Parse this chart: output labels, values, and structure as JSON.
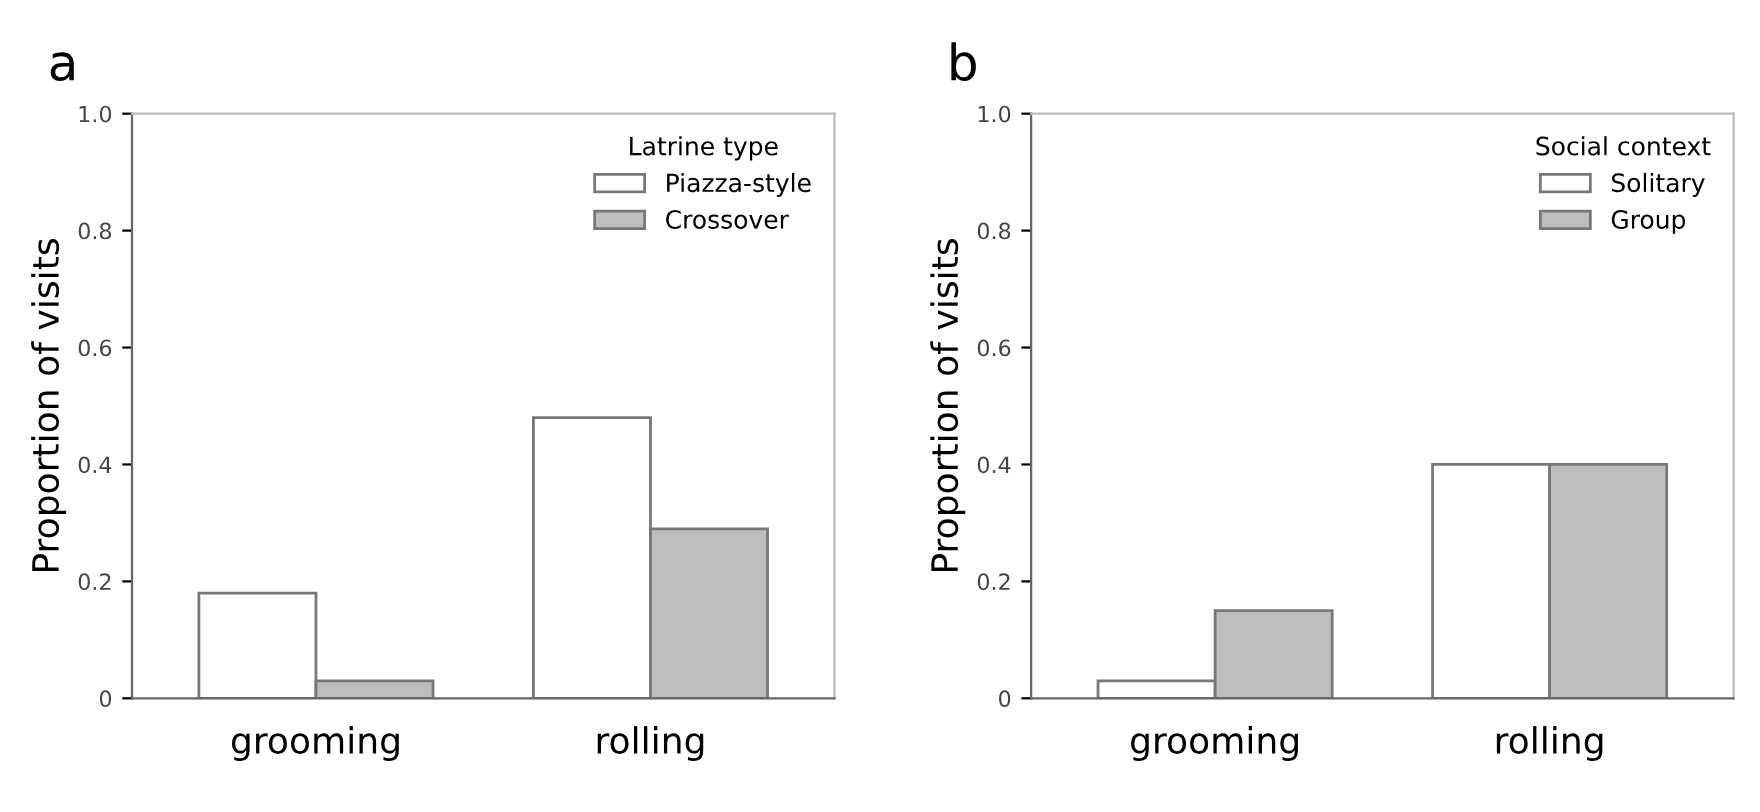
{
  "chart_data": [
    {
      "type": "bar",
      "title": "a",
      "ylabel": "Proportion of visits",
      "categories": [
        "grooming",
        "rolling"
      ],
      "legend_title": "Latrine type",
      "legend": "top right",
      "series": [
        {
          "name": "Piazza-style",
          "color": "#ffffff",
          "values": [
            0.18,
            0.48
          ]
        },
        {
          "name": "Crossover",
          "color": "#bdbdbd",
          "values": [
            0.03,
            0.29
          ]
        }
      ],
      "ylim": [
        0,
        1.0
      ],
      "yticks": [
        0,
        0.2,
        0.4,
        0.6,
        0.8,
        {
          "value": 1,
          "label": "1.0"
        }
      ],
      "grid": false
    },
    {
      "type": "bar",
      "title": "b",
      "ylabel": "Proportion of visits",
      "categories": [
        "grooming",
        "rolling"
      ],
      "legend_title": "Social context",
      "legend": "top right",
      "series": [
        {
          "name": "Solitary",
          "color": "#ffffff",
          "values": [
            0.03,
            0.4
          ]
        },
        {
          "name": "Group",
          "color": "#bdbdbd",
          "values": [
            0.15,
            0.4
          ]
        }
      ],
      "ylim": [
        0,
        1.0
      ],
      "yticks": [
        0,
        0.2,
        0.4,
        0.6,
        0.8,
        {
          "value": 1,
          "label": "1.0"
        }
      ],
      "grid": false
    }
  ]
}
